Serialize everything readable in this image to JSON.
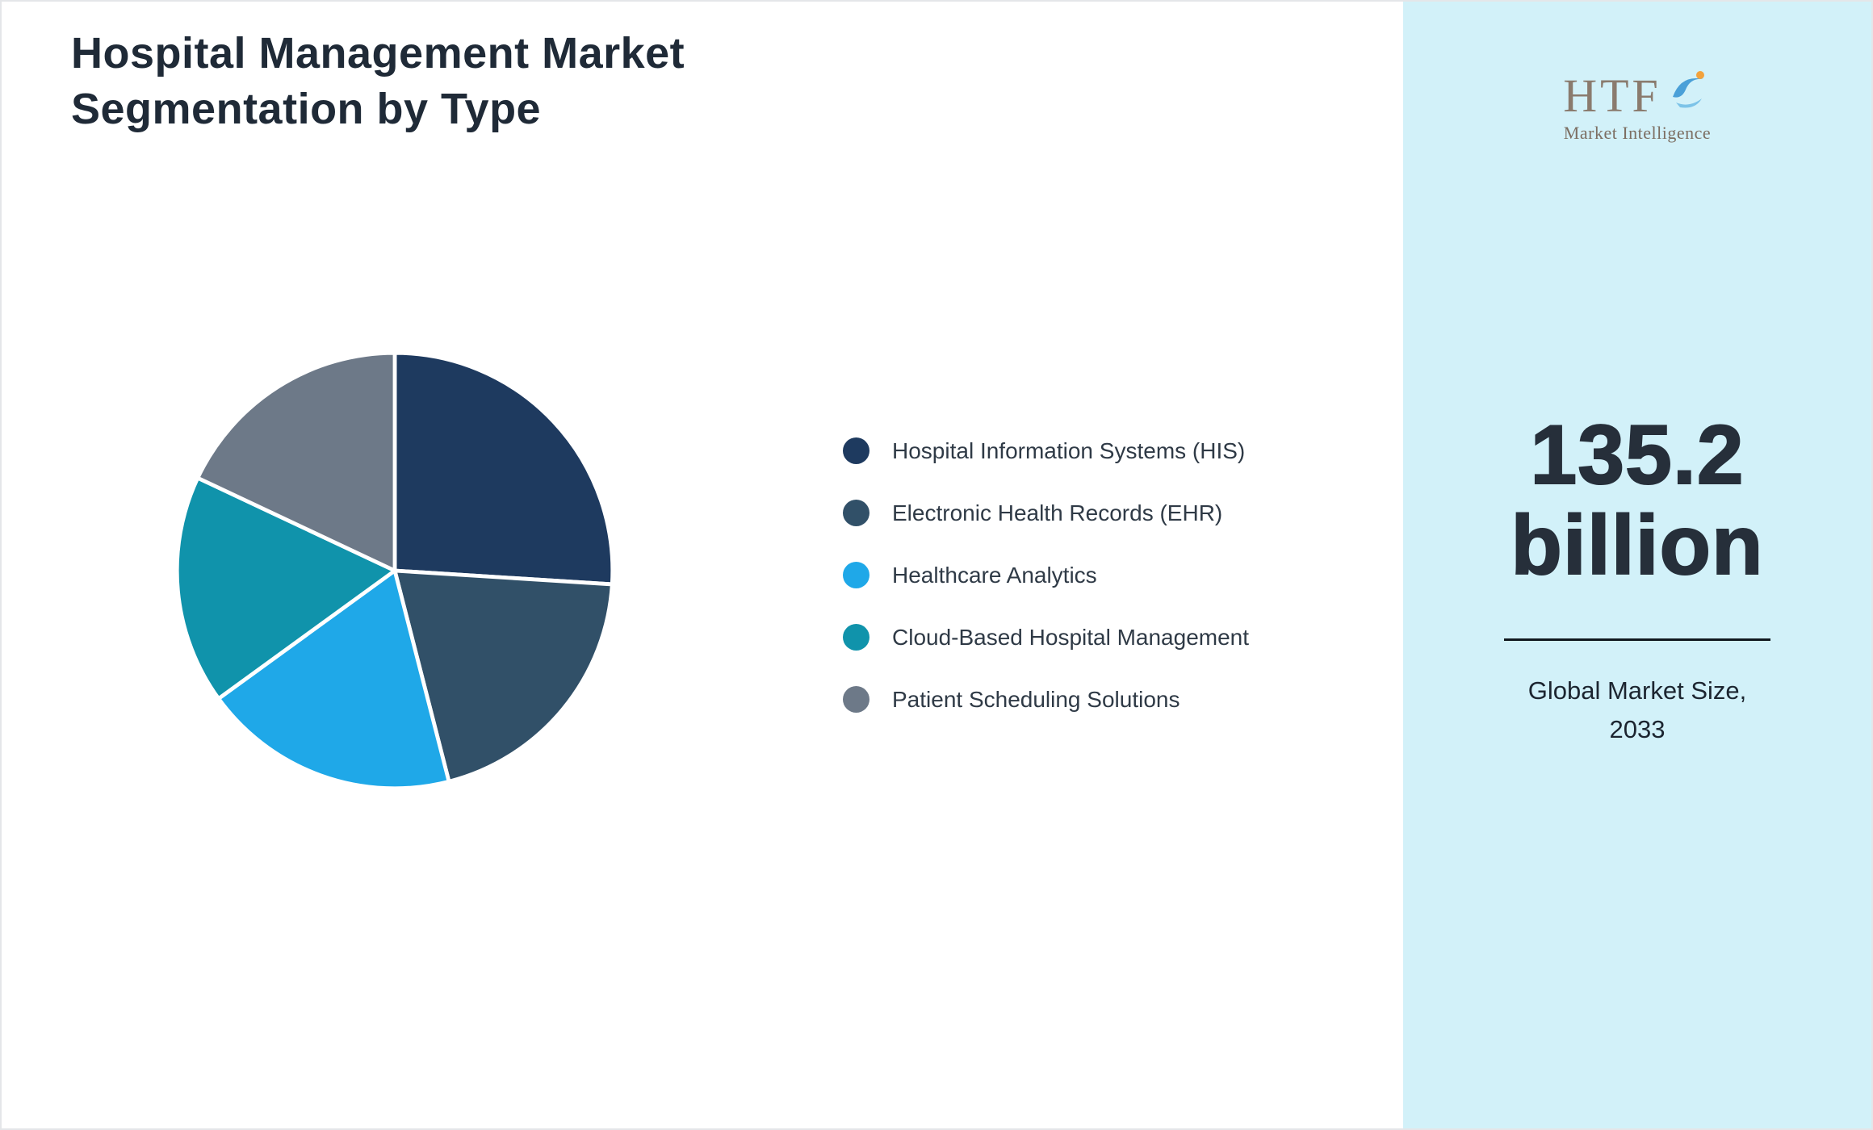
{
  "page": {
    "title_line1": "Hospital Management Market",
    "title_line2": "Segmentation by Type"
  },
  "chart_data": {
    "type": "pie",
    "title": "Hospital Management Market Segmentation by Type",
    "legend_position": "right",
    "values_are_estimates_percent": true,
    "segments": [
      {
        "label": "Hospital Information Systems (HIS)",
        "value": 26,
        "color": "#1e3a5f"
      },
      {
        "label": "Electronic Health Records (EHR)",
        "value": 20,
        "color": "#315068"
      },
      {
        "label": "Healthcare Analytics",
        "value": 19,
        "color": "#1fa8e8"
      },
      {
        "label": "Cloud-Based Hospital Management",
        "value": 17,
        "color": "#1093ab"
      },
      {
        "label": "Patient Scheduling Solutions",
        "value": 18,
        "color": "#6d7988"
      }
    ]
  },
  "sidebar": {
    "background": "#d2f1f9",
    "logo_text": "HTF",
    "logo_subtext": "Market Intelligence",
    "value_line1": "135.2",
    "value_line2": "billion",
    "caption_line1": "Global Market Size,",
    "caption_line2": "2033"
  }
}
